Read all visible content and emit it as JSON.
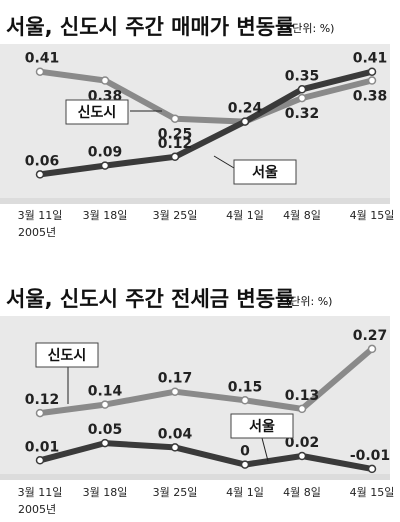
{
  "chart_data": [
    {
      "type": "line",
      "title": "서울, 신도시 주간 매매가 변동률",
      "unit_note": "(단위: %)",
      "x": [
        "3월 11일",
        "3월 18일",
        "3월 25일",
        "4월 1일",
        "4월 8일",
        "4월 15일"
      ],
      "year_note": "2005년",
      "ylim": [
        0,
        0.45
      ],
      "series": [
        {
          "name": "신도시",
          "values": [
            0.41,
            0.38,
            0.25,
            0.24,
            0.32,
            0.38
          ],
          "color": "#8a8a8a"
        },
        {
          "name": "서울",
          "values": [
            0.06,
            0.09,
            0.12,
            0.24,
            0.35,
            0.41
          ],
          "color": "#3a3a3a"
        }
      ],
      "value_labels": [
        [
          "0.41",
          "0.38",
          "0.25",
          "0.24",
          "0.32",
          "0.38"
        ],
        [
          "0.06",
          "0.09",
          "0.12",
          "",
          "0.35",
          "0.41"
        ]
      ]
    },
    {
      "type": "line",
      "title": "서울, 신도시 주간 전세금 변동률",
      "unit_note": "(단위: %)",
      "x": [
        "3월 11일",
        "3월 18일",
        "3월 25일",
        "4월 1일",
        "4월 8일",
        "4월 15일"
      ],
      "year_note": "2005년",
      "ylim": [
        -0.05,
        0.3
      ],
      "series": [
        {
          "name": "신도시",
          "values": [
            0.12,
            0.14,
            0.17,
            0.15,
            0.13,
            0.27
          ],
          "color": "#8a8a8a"
        },
        {
          "name": "서울",
          "values": [
            0.01,
            0.05,
            0.04,
            0,
            0.02,
            -0.01
          ],
          "color": "#3a3a3a"
        }
      ],
      "value_labels": [
        [
          "0.12",
          "0.14",
          "0.17",
          "0.15",
          "0.13",
          "0.27"
        ],
        [
          "0.01",
          "0.05",
          "0.04",
          "0",
          "0.02",
          "-0.01"
        ]
      ]
    }
  ]
}
